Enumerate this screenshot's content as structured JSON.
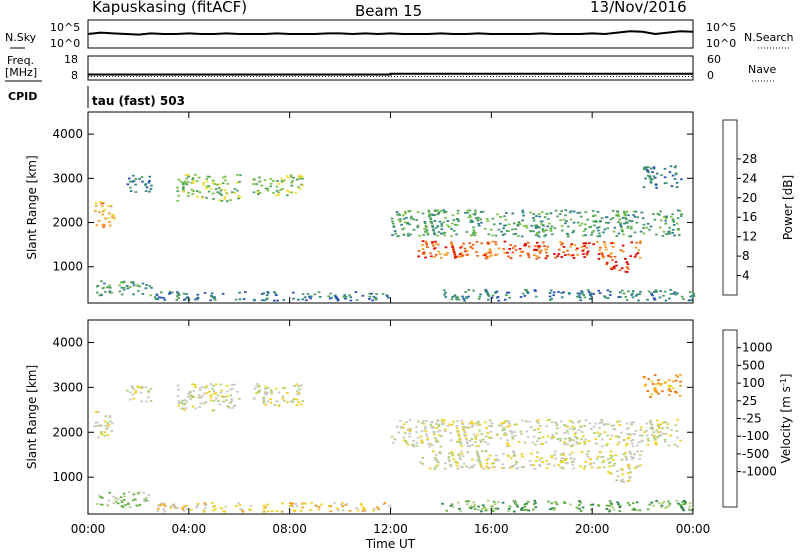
{
  "header": {
    "station": "Kapuskasing (fitACF)",
    "beam": "Beam 15",
    "date": "13/Nov/2016"
  },
  "noise_panel": {
    "left_label": "N.Sky",
    "right_label": "N.Search",
    "left_ticks": [
      "10^5",
      "10^0"
    ],
    "right_ticks": [
      "10^5",
      "10^0"
    ]
  },
  "freq_panel": {
    "left_label_1": "Freq.",
    "left_label_2": "[MHz]",
    "left_ticks": [
      "18",
      "8"
    ],
    "right_label": "Nave",
    "right_ticks": [
      "60",
      "0"
    ],
    "cpid_label": "CPID",
    "cpid_text": "tau (fast) 503"
  },
  "chart_data": [
    {
      "type": "line",
      "title": "",
      "ylabel": "N.Sky",
      "ylabel_right": "N.Search",
      "xlim": [
        0,
        24
      ],
      "series": [
        {
          "name": "N.Sky",
          "style": "solid",
          "x": [
            0,
            0.5,
            1,
            1.5,
            2,
            2.5,
            3,
            3.5,
            4,
            4.5,
            5,
            5.5,
            6,
            6.5,
            7,
            7.5,
            8,
            8.5,
            9,
            9.5,
            10,
            10.5,
            11,
            11.5,
            12,
            12.5,
            13,
            13.5,
            14,
            14.5,
            15,
            15.5,
            16,
            16.5,
            17,
            17.5,
            18,
            18.5,
            19,
            19.5,
            20,
            20.5,
            21,
            21.5,
            22,
            22.5,
            23,
            23.5,
            24
          ],
          "values": [
            0.5,
            0.55,
            0.52,
            0.5,
            0.48,
            0.52,
            0.5,
            0.5,
            0.52,
            0.5,
            0.5,
            0.52,
            0.5,
            0.5,
            0.5,
            0.52,
            0.5,
            0.5,
            0.5,
            0.52,
            0.52,
            0.5,
            0.52,
            0.5,
            0.52,
            0.5,
            0.5,
            0.5,
            0.52,
            0.5,
            0.5,
            0.52,
            0.5,
            0.5,
            0.5,
            0.5,
            0.52,
            0.5,
            0.5,
            0.5,
            0.52,
            0.5,
            0.55,
            0.6,
            0.58,
            0.5,
            0.55,
            0.6,
            0.58
          ]
        }
      ]
    },
    {
      "type": "line",
      "title": "",
      "ylabel": "Freq. [MHz]",
      "ylabel_right": "Nave",
      "xlim": [
        0,
        24
      ],
      "ylim": [
        8,
        18
      ],
      "series": [
        {
          "name": "Freq.",
          "style": "solid",
          "x": [
            0,
            12,
            12,
            24
          ],
          "values": [
            10.3,
            10.3,
            10.6,
            10.6
          ]
        },
        {
          "name": "Nave",
          "style": "dotted",
          "x": [
            0,
            24
          ],
          "values": [
            9.5,
            9.5
          ]
        }
      ]
    },
    {
      "type": "heatmap",
      "title": "",
      "xlabel": "",
      "ylabel": "Slant Range [km]",
      "xlim": [
        0,
        24
      ],
      "ylim": [
        180,
        4500
      ],
      "yticks": [
        "1000",
        "2000",
        "3000",
        "4000"
      ],
      "colorbar": {
        "label": "Power [dB]",
        "ticks": [
          "4",
          "8",
          "12",
          "16",
          "20",
          "24",
          "28"
        ],
        "colors": [
          "#0000f0",
          "#2a50b4",
          "#2f7f8a",
          "#4ea061",
          "#7ac04a",
          "#f0e033",
          "#f5a024",
          "#f06018",
          "#e00000"
        ],
        "range": [
          0,
          30
        ]
      },
      "regions": [
        {
          "hours": [
            0.3,
            2.5
          ],
          "km": [
            350,
            700
          ],
          "level": 3
        },
        {
          "hours": [
            0.2,
            1.0
          ],
          "km": [
            1900,
            2500
          ],
          "level": 6
        },
        {
          "hours": [
            1.5,
            2.5
          ],
          "km": [
            2700,
            3100
          ],
          "level": 2
        },
        {
          "hours": [
            3.5,
            6.0
          ],
          "km": [
            2500,
            3100
          ],
          "level": 4
        },
        {
          "hours": [
            6.5,
            8.5
          ],
          "km": [
            2600,
            3100
          ],
          "level": 4
        },
        {
          "hours": [
            2.5,
            12
          ],
          "km": [
            250,
            450
          ],
          "level": 2
        },
        {
          "hours": [
            12,
            23.5
          ],
          "km": [
            1700,
            2300
          ],
          "level": 3
        },
        {
          "hours": [
            13,
            22
          ],
          "km": [
            1200,
            1600
          ],
          "level": 7
        },
        {
          "hours": [
            20.5,
            21.5
          ],
          "km": [
            900,
            1200
          ],
          "level": 8
        },
        {
          "hours": [
            14,
            24
          ],
          "km": [
            250,
            500
          ],
          "level": 2
        },
        {
          "hours": [
            22,
            23.5
          ],
          "km": [
            2800,
            3300
          ],
          "level": 2
        }
      ]
    },
    {
      "type": "heatmap",
      "title": "",
      "xlabel": "Time UT",
      "ylabel": "Slant Range [km]",
      "xlim": [
        0,
        24
      ],
      "ylim": [
        180,
        4500
      ],
      "xticks": [
        "00:00",
        "04:00",
        "08:00",
        "12:00",
        "16:00",
        "20:00",
        "00:00"
      ],
      "yticks": [
        "1000",
        "2000",
        "3000",
        "4000"
      ],
      "colorbar": {
        "label": "Velocity [m s^-1]",
        "ticks": [
          "1000",
          "500",
          "100",
          "25",
          "-25",
          "-100",
          "-500",
          "-1000"
        ],
        "colors": [
          "#2030c0",
          "#2f6ab0",
          "#2c8050",
          "#60b040",
          "#b0d080",
          "#c8c8c0",
          "#f0d020",
          "#f0a020",
          "#f07010",
          "#e00000"
        ],
        "range": [
          -1000,
          1000
        ]
      },
      "regions": [
        {
          "hours": [
            0.3,
            2.5
          ],
          "km": [
            350,
            700
          ],
          "level": 4
        },
        {
          "hours": [
            0.2,
            1.0
          ],
          "km": [
            1900,
            2500
          ],
          "level": 5
        },
        {
          "hours": [
            1.5,
            2.5
          ],
          "km": [
            2700,
            3100
          ],
          "level": 5
        },
        {
          "hours": [
            3.5,
            6.0
          ],
          "km": [
            2500,
            3100
          ],
          "level": 5
        },
        {
          "hours": [
            6.5,
            8.5
          ],
          "km": [
            2600,
            3100
          ],
          "level": 5
        },
        {
          "hours": [
            2.5,
            12
          ],
          "km": [
            250,
            450
          ],
          "level": 6
        },
        {
          "hours": [
            12,
            23.5
          ],
          "km": [
            1700,
            2300
          ],
          "level": 5
        },
        {
          "hours": [
            13,
            22
          ],
          "km": [
            1200,
            1600
          ],
          "level": 5
        },
        {
          "hours": [
            20.5,
            21.5
          ],
          "km": [
            900,
            1200
          ],
          "level": 5
        },
        {
          "hours": [
            14,
            24
          ],
          "km": [
            250,
            500
          ],
          "level": 3
        },
        {
          "hours": [
            22,
            23.5
          ],
          "km": [
            2800,
            3300
          ],
          "level": 7
        }
      ]
    }
  ]
}
